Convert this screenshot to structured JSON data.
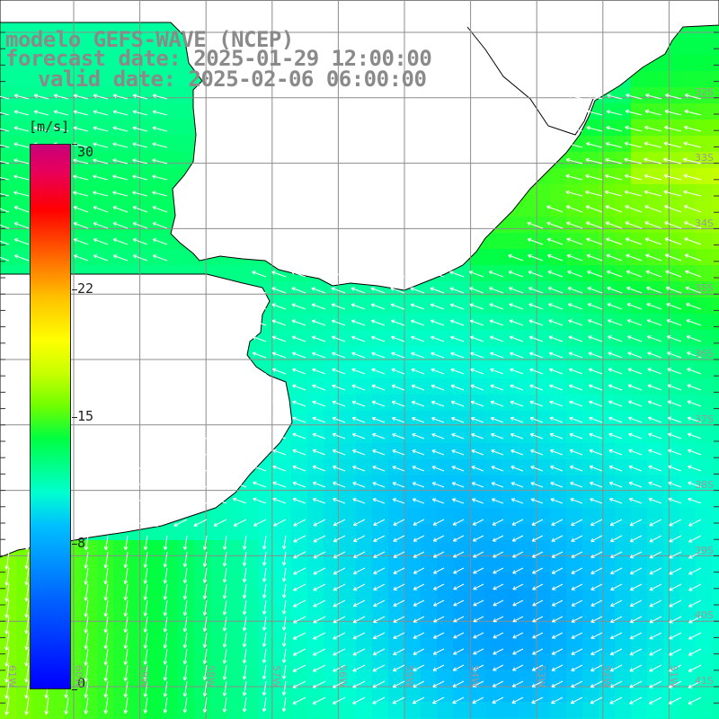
{
  "header": {
    "model": "modelo GEFS-WAVE (NCEP)",
    "forecast": "forecast date: 2025-01-29 12:00:00",
    "valid": "valid date: 2025-02-06 06:00:00"
  },
  "colorbar": {
    "units": "[m/s]",
    "ticks": [
      "30",
      "22",
      "15",
      "8",
      "0"
    ],
    "tick_values": [
      30,
      22,
      15,
      8,
      0
    ],
    "range": [
      0,
      30
    ]
  },
  "axes": {
    "lat_labels": [
      "32S",
      "33S",
      "34S",
      "35S",
      "36S",
      "37S",
      "38S",
      "39S",
      "40S",
      "41S"
    ],
    "lon_labels": [
      "61W",
      "60W",
      "59W",
      "58W",
      "57W",
      "56W",
      "55W",
      "54W",
      "53W",
      "52W",
      "51W"
    ]
  },
  "colors": {
    "land": "#ffffff",
    "grid": "#8c8c8c",
    "title": "#8a8a8a",
    "arrows": "#ffffff"
  }
}
